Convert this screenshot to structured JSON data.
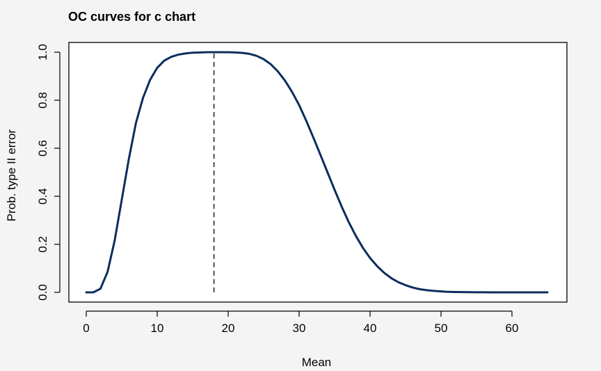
{
  "chart_data": {
    "type": "line",
    "title": "OC curves for c chart",
    "xlabel": "Mean",
    "ylabel": "Prob. type II error",
    "xlim": [
      0,
      65
    ],
    "ylim": [
      0,
      1
    ],
    "x_ticks": [
      0,
      10,
      20,
      30,
      40,
      50,
      60
    ],
    "y_ticks": [
      0.0,
      0.2,
      0.4,
      0.6,
      0.8,
      1.0
    ],
    "x_tick_labels": [
      "0",
      "10",
      "20",
      "30",
      "40",
      "50",
      "60"
    ],
    "y_tick_labels": [
      "0.0",
      "0.2",
      "0.4",
      "0.6",
      "0.8",
      "1.0"
    ],
    "grid": false,
    "reference_line": {
      "x": 18,
      "style": "dashed",
      "color": "#000000"
    },
    "series": [
      {
        "color": "#0b2c5e",
        "x": [
          0,
          1,
          2,
          3,
          4,
          5,
          6,
          7,
          8,
          9,
          10,
          11,
          12,
          13,
          14,
          15,
          16,
          17,
          18,
          19,
          20,
          21,
          22,
          23,
          24,
          25,
          26,
          27,
          28,
          29,
          30,
          31,
          32,
          33,
          34,
          35,
          36,
          37,
          38,
          39,
          40,
          41,
          42,
          43,
          44,
          45,
          46,
          47,
          48,
          49,
          50,
          51,
          52,
          53,
          54,
          55,
          56,
          57,
          58,
          59,
          60,
          61,
          62,
          63,
          64,
          65
        ],
        "y": [
          0.0,
          0.0,
          0.015,
          0.085,
          0.215,
          0.385,
          0.555,
          0.705,
          0.81,
          0.885,
          0.935,
          0.965,
          0.981,
          0.99,
          0.995,
          0.998,
          0.999,
          1.0,
          1.0,
          1.0,
          1.0,
          0.999,
          0.997,
          0.993,
          0.985,
          0.971,
          0.95,
          0.92,
          0.882,
          0.835,
          0.78,
          0.715,
          0.645,
          0.573,
          0.5,
          0.427,
          0.357,
          0.292,
          0.235,
          0.185,
          0.143,
          0.109,
          0.081,
          0.059,
          0.042,
          0.03,
          0.02,
          0.013,
          0.009,
          0.006,
          0.004,
          0.002,
          0.0015,
          0.001,
          0.0006,
          0.0004,
          0.0002,
          0.0001,
          0.0001,
          0.0,
          0.0,
          0.0,
          0.0,
          0.0,
          0.0,
          0.0
        ]
      }
    ]
  }
}
